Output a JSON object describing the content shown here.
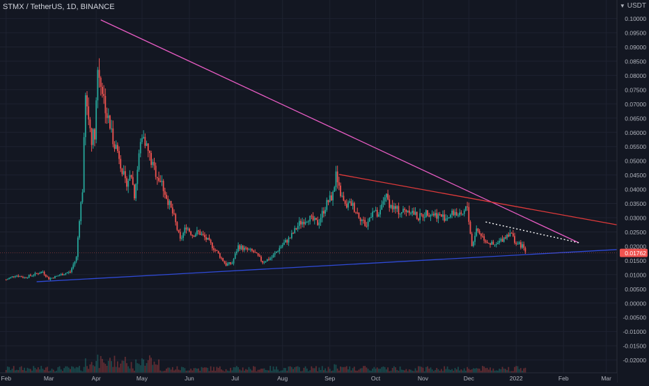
{
  "header": {
    "symbol_title": "STMX / TetherUS, 1D, BINANCE",
    "currency": "USDT",
    "currency_icon": "chevron-down-icon"
  },
  "colors": {
    "background": "#131722",
    "grid": "#1e2230",
    "up_candle": "#26a69a",
    "down_candle": "#ef5350",
    "axis_text": "#b2b5be",
    "upper_trendline": "#e85cc4",
    "mid_trendline": "#e03a3a",
    "support_trendline": "#2f4ad6",
    "dotted_trendline": "#ffffff",
    "price_label_bg": "#ef5350"
  },
  "chart_data": {
    "type": "candlestick",
    "title": "STMX / TetherUS, 1D, BINANCE",
    "timeframe": "1D",
    "exchange": "BINANCE",
    "quote_currency": "USDT",
    "last_price": "0.01762",
    "x_tick_labels": [
      "Feb",
      "Mar",
      "Apr",
      "May",
      "Jun",
      "Jul",
      "Aug",
      "Sep",
      "Oct",
      "Nov",
      "Dec",
      "2022",
      "Feb",
      "Mar"
    ],
    "x_ticks": [
      0,
      28,
      59,
      89,
      120,
      150,
      181,
      212,
      242,
      273,
      303,
      334,
      365,
      393
    ],
    "y_tick_labels": [
      "0.10000",
      "0.09500",
      "0.09000",
      "0.08500",
      "0.08000",
      "0.07500",
      "0.07000",
      "0.06500",
      "0.06000",
      "0.05500",
      "0.05000",
      "0.04500",
      "0.04000",
      "0.03500",
      "0.03000",
      "0.02500",
      "0.02000",
      "0.01500",
      "0.01000",
      "0.00500",
      "0.00000",
      "-0.00500",
      "-0.01000",
      "-0.01500",
      "-0.02000"
    ],
    "y_ticks": [
      0.1,
      0.095,
      0.09,
      0.085,
      0.08,
      0.075,
      0.07,
      0.065,
      0.06,
      0.055,
      0.05,
      0.045,
      0.04,
      0.035,
      0.03,
      0.025,
      0.02,
      0.015,
      0.01,
      0.005,
      0.0,
      -0.005,
      -0.01,
      -0.015,
      -0.02
    ],
    "xlim": [
      -4,
      400
    ],
    "ylim": [
      -0.0245,
      0.1065
    ],
    "grid": true,
    "ohlc_anchors": [
      [
        0,
        0.0082
      ],
      [
        6,
        0.0098
      ],
      [
        12,
        0.009
      ],
      [
        18,
        0.01
      ],
      [
        24,
        0.011
      ],
      [
        28,
        0.0085
      ],
      [
        36,
        0.01
      ],
      [
        42,
        0.011
      ],
      [
        46,
        0.016
      ],
      [
        48,
        0.03
      ],
      [
        50,
        0.04
      ],
      [
        52,
        0.072
      ],
      [
        54,
        0.065
      ],
      [
        56,
        0.058
      ],
      [
        58,
        0.06
      ],
      [
        60,
        0.082
      ],
      [
        62,
        0.078
      ],
      [
        64,
        0.072
      ],
      [
        66,
        0.066
      ],
      [
        68,
        0.062
      ],
      [
        70,
        0.058
      ],
      [
        74,
        0.052
      ],
      [
        78,
        0.042
      ],
      [
        82,
        0.045
      ],
      [
        84,
        0.038
      ],
      [
        88,
        0.056
      ],
      [
        90,
        0.06
      ],
      [
        92,
        0.055
      ],
      [
        96,
        0.048
      ],
      [
        102,
        0.042
      ],
      [
        106,
        0.036
      ],
      [
        110,
        0.03
      ],
      [
        114,
        0.022
      ],
      [
        118,
        0.027
      ],
      [
        122,
        0.024
      ],
      [
        126,
        0.025
      ],
      [
        132,
        0.022
      ],
      [
        138,
        0.018
      ],
      [
        144,
        0.0135
      ],
      [
        148,
        0.014
      ],
      [
        152,
        0.02
      ],
      [
        156,
        0.019
      ],
      [
        162,
        0.018
      ],
      [
        168,
        0.0145
      ],
      [
        174,
        0.016
      ],
      [
        180,
        0.02
      ],
      [
        186,
        0.023
      ],
      [
        192,
        0.028
      ],
      [
        198,
        0.03
      ],
      [
        204,
        0.028
      ],
      [
        210,
        0.035
      ],
      [
        214,
        0.038
      ],
      [
        216,
        0.045
      ],
      [
        218,
        0.04
      ],
      [
        222,
        0.034
      ],
      [
        226,
        0.035
      ],
      [
        232,
        0.03
      ],
      [
        236,
        0.027
      ],
      [
        240,
        0.033
      ],
      [
        244,
        0.03
      ],
      [
        248,
        0.038
      ],
      [
        252,
        0.034
      ],
      [
        258,
        0.032
      ],
      [
        264,
        0.033
      ],
      [
        270,
        0.03
      ],
      [
        276,
        0.032
      ],
      [
        282,
        0.031
      ],
      [
        288,
        0.03
      ],
      [
        294,
        0.032
      ],
      [
        298,
        0.03
      ],
      [
        302,
        0.034
      ],
      [
        305,
        0.02
      ],
      [
        308,
        0.026
      ],
      [
        314,
        0.022
      ],
      [
        320,
        0.02
      ],
      [
        326,
        0.023
      ],
      [
        330,
        0.025
      ],
      [
        334,
        0.021
      ],
      [
        338,
        0.02
      ],
      [
        340,
        0.018
      ]
    ],
    "annotations": [
      {
        "type": "trendline",
        "name": "upper-pink",
        "color": "#e85cc4",
        "points": [
          [
            62,
            0.0995
          ],
          [
            375,
            0.0212
          ]
        ]
      },
      {
        "type": "trendline",
        "name": "mid-red",
        "color": "#e03a3a",
        "points": [
          [
            218,
            0.0452
          ],
          [
            400,
            0.0275
          ]
        ]
      },
      {
        "type": "trendline",
        "name": "support-blue",
        "color": "#2f4ad6",
        "points": [
          [
            20,
            0.0075
          ],
          [
            400,
            0.0188
          ]
        ]
      },
      {
        "type": "trendline",
        "name": "dotted-white",
        "color": "#ffffff",
        "style": "dotted",
        "points": [
          [
            314,
            0.0285
          ],
          [
            375,
            0.0212
          ]
        ]
      },
      {
        "type": "horizontal-line",
        "name": "last-price",
        "color": "#ef5350",
        "price": 0.01762
      }
    ]
  }
}
